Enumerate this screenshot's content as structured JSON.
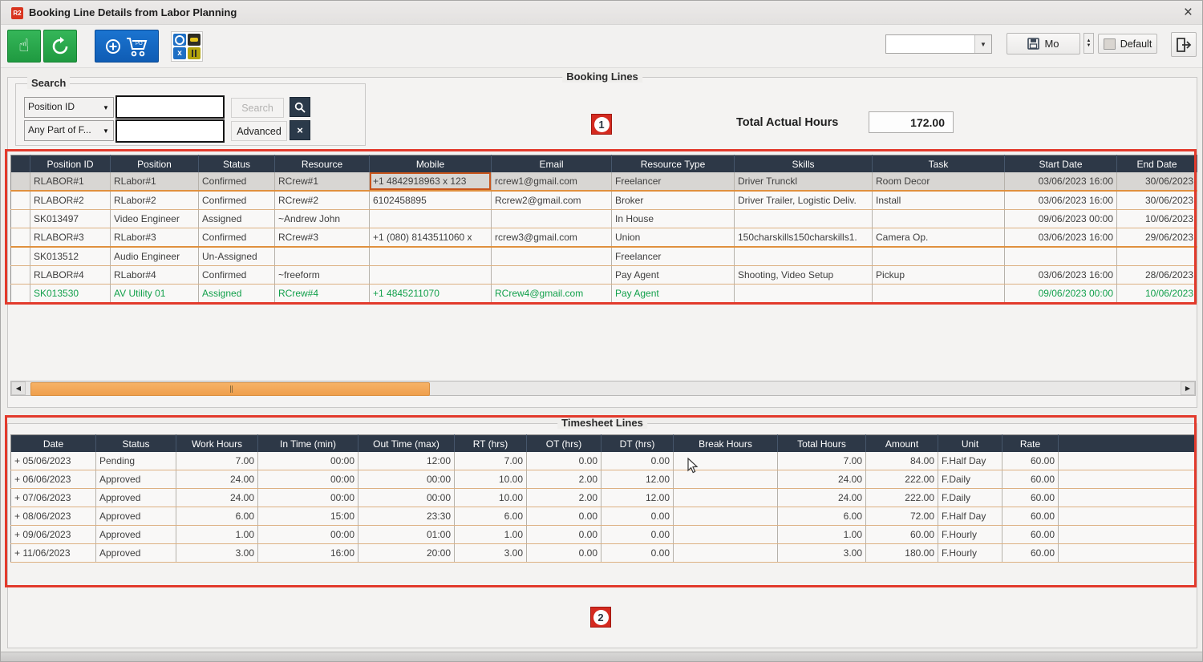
{
  "window": {
    "title": "Booking Line Details from Labor Planning",
    "app_badge": "R2",
    "close_glyph": "×"
  },
  "toolbar": {
    "select_value": "",
    "save_view_label": "Mo",
    "default_label": "Default"
  },
  "search": {
    "group_label": "Search",
    "field1_value": "Position ID",
    "field2_value": "Any Part of F...",
    "input1_value": "",
    "input2_value": "",
    "search_label": "Search",
    "advanced_label": "Advanced"
  },
  "booking": {
    "group_label": "Booking Lines",
    "marker": "1",
    "total_label": "Total Actual Hours",
    "total_value": "172.00",
    "columns": [
      "",
      "Position ID",
      "Position",
      "Status",
      "Resource",
      "Mobile",
      "Email",
      "Resource Type",
      "Skills",
      "Task",
      "Start Date",
      "End Date"
    ],
    "rows": [
      [
        "",
        "RLABOR#1",
        "RLabor#1",
        "Confirmed",
        "RCrew#1",
        "+1 4842918963 x 123",
        "rcrew1@gmail.com",
        "Freelancer",
        "Driver Trunckl",
        "Room Decor",
        "03/06/2023 16:00",
        "30/06/2023"
      ],
      [
        "",
        "RLABOR#2",
        "RLabor#2",
        "Confirmed",
        "RCrew#2",
        "6102458895",
        "Rcrew2@gmail.com",
        "Broker",
        "Driver Trailer, Logistic Deliv.",
        "Install",
        "03/06/2023 16:00",
        "30/06/2023"
      ],
      [
        "",
        "SK013497",
        "Video Engineer",
        "Assigned",
        "~Andrew John",
        "",
        "",
        "In House",
        "",
        "",
        "09/06/2023 00:00",
        "10/06/2023"
      ],
      [
        "",
        "RLABOR#3",
        "RLabor#3",
        "Confirmed",
        "RCrew#3",
        "+1 (080) 8143511060 x",
        "rcrew3@gmail.com",
        "Union",
        "150charskills150charskills1.",
        "Camera Op.",
        "03/06/2023 16:00",
        "29/06/2023"
      ],
      [
        "",
        "SK013512",
        "Audio Engineer",
        "Un-Assigned",
        "",
        "",
        "",
        "Freelancer",
        "",
        "",
        "",
        ""
      ],
      [
        "",
        "RLABOR#4",
        "RLabor#4",
        "Confirmed",
        "~freeform",
        "",
        "",
        "Pay Agent",
        "Shooting, Video Setup",
        "Pickup",
        "03/06/2023 16:00",
        "28/06/2023"
      ],
      [
        "",
        "SK013530",
        "AV Utility 01",
        "Assigned",
        "RCrew#4",
        "+1 4845211070",
        "RCrew4@gmail.com",
        "Pay Agent",
        "",
        "",
        "09/06/2023 00:00",
        "10/06/2023"
      ]
    ],
    "selected_row": 0,
    "highlight_row": 6,
    "active_cell": {
      "row": 0,
      "col": 5
    },
    "strong_dividers_after": [
      0,
      3
    ]
  },
  "timesheet": {
    "group_label": "Timesheet Lines",
    "marker": "2",
    "columns": [
      "Date",
      "Status",
      "Work Hours",
      "In Time (min)",
      "Out Time (max)",
      "RT (hrs)",
      "OT (hrs)",
      "DT (hrs)",
      "Break Hours",
      "Total Hours",
      "Amount",
      "Unit",
      "Rate",
      ""
    ],
    "rows": [
      [
        "+ 05/06/2023",
        "Pending",
        "7.00",
        "00:00",
        "12:00",
        "7.00",
        "0.00",
        "0.00",
        "",
        "7.00",
        "84.00",
        "F.Half Day",
        "60.00",
        ""
      ],
      [
        "+ 06/06/2023",
        "Approved",
        "24.00",
        "00:00",
        "00:00",
        "10.00",
        "2.00",
        "12.00",
        "",
        "24.00",
        "222.00",
        "F.Daily",
        "60.00",
        ""
      ],
      [
        "+ 07/06/2023",
        "Approved",
        "24.00",
        "00:00",
        "00:00",
        "10.00",
        "2.00",
        "12.00",
        "",
        "24.00",
        "222.00",
        "F.Daily",
        "60.00",
        ""
      ],
      [
        "+ 08/06/2023",
        "Approved",
        "6.00",
        "15:00",
        "23:30",
        "6.00",
        "0.00",
        "0.00",
        "",
        "6.00",
        "72.00",
        "F.Half Day",
        "60.00",
        ""
      ],
      [
        "+ 09/06/2023",
        "Approved",
        "1.00",
        "00:00",
        "01:00",
        "1.00",
        "0.00",
        "0.00",
        "",
        "1.00",
        "60.00",
        "F.Hourly",
        "60.00",
        ""
      ],
      [
        "+ 11/06/2023",
        "Approved",
        "3.00",
        "16:00",
        "20:00",
        "3.00",
        "0.00",
        "0.00",
        "",
        "3.00",
        "180.00",
        "F.Hourly",
        "60.00",
        ""
      ]
    ]
  },
  "colors": {
    "annotation_red": "#e23a2c",
    "grid_header_navy": "#2d3847",
    "scrollbar_orange": "#efa05c",
    "green_row_text": "#12a04b",
    "green_button": "#27a344",
    "blue_button": "#1568c4"
  },
  "icons": {
    "hand_pointer": "☝",
    "dropdown_arrow": "▼",
    "scroll_left": "◀",
    "scroll_right": "▶",
    "spinner_up": "▲",
    "spinner_down": "▼"
  }
}
